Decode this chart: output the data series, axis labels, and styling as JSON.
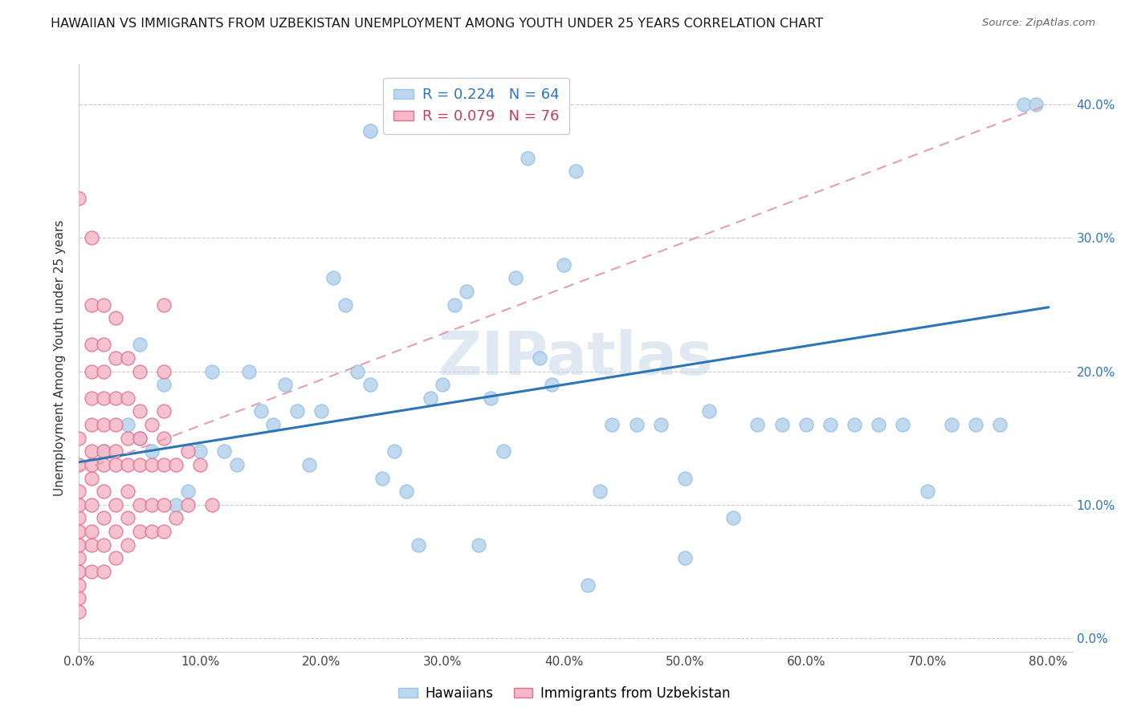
{
  "title": "HAWAIIAN VS IMMIGRANTS FROM UZBEKISTAN UNEMPLOYMENT AMONG YOUTH UNDER 25 YEARS CORRELATION CHART",
  "source": "Source: ZipAtlas.com",
  "ylabel": "Unemployment Among Youth under 25 years",
  "watermark": "ZIPatlas",
  "xlim": [
    0.0,
    0.82
  ],
  "ylim": [
    -0.01,
    0.43
  ],
  "xticks": [
    0.0,
    0.1,
    0.2,
    0.3,
    0.4,
    0.5,
    0.6,
    0.7,
    0.8
  ],
  "yticks": [
    0.0,
    0.1,
    0.2,
    0.3,
    0.4
  ],
  "hawaiians_color": "#bdd7ee",
  "hawaiians_edge": "#9dc3e6",
  "uzbekistan_color": "#f4b8c8",
  "uzbekistan_edge": "#e07090",
  "trendline_blue_color": "#2e75b6",
  "trendline_pink_color": "#e0a0b0",
  "trendline_h_x0": 0.0,
  "trendline_h_y0": 0.132,
  "trendline_h_x1": 0.8,
  "trendline_h_y1": 0.248,
  "trendline_u_x0": 0.0,
  "trendline_u_y0": 0.125,
  "trendline_u_x1": 0.8,
  "trendline_u_y1": 0.4,
  "legend1_label": "R = 0.224   N = 64",
  "legend2_label": "R = 0.079   N = 76",
  "bot_legend1": "Hawaiians",
  "bot_legend2": "Immigrants from Uzbekistan",
  "hawaiians_x": [
    0.02,
    0.04,
    0.05,
    0.05,
    0.06,
    0.07,
    0.08,
    0.09,
    0.1,
    0.11,
    0.12,
    0.13,
    0.14,
    0.15,
    0.16,
    0.17,
    0.18,
    0.19,
    0.2,
    0.21,
    0.22,
    0.23,
    0.24,
    0.25,
    0.26,
    0.27,
    0.28,
    0.29,
    0.3,
    0.31,
    0.32,
    0.33,
    0.34,
    0.35,
    0.36,
    0.37,
    0.38,
    0.39,
    0.4,
    0.41,
    0.42,
    0.43,
    0.44,
    0.46,
    0.48,
    0.5,
    0.52,
    0.54,
    0.56,
    0.58,
    0.6,
    0.62,
    0.64,
    0.66,
    0.68,
    0.7,
    0.72,
    0.74,
    0.76,
    0.78,
    0.24,
    0.24,
    0.5,
    0.79
  ],
  "hawaiians_y": [
    0.14,
    0.16,
    0.15,
    0.22,
    0.14,
    0.19,
    0.1,
    0.11,
    0.14,
    0.2,
    0.14,
    0.13,
    0.2,
    0.17,
    0.16,
    0.19,
    0.17,
    0.13,
    0.17,
    0.27,
    0.25,
    0.2,
    0.19,
    0.12,
    0.14,
    0.11,
    0.07,
    0.18,
    0.19,
    0.25,
    0.26,
    0.07,
    0.18,
    0.14,
    0.27,
    0.36,
    0.21,
    0.19,
    0.28,
    0.35,
    0.04,
    0.11,
    0.16,
    0.16,
    0.16,
    0.12,
    0.17,
    0.09,
    0.16,
    0.16,
    0.16,
    0.16,
    0.16,
    0.16,
    0.16,
    0.11,
    0.16,
    0.16,
    0.16,
    0.4,
    0.38,
    0.38,
    0.06,
    0.4
  ],
  "uzbekistan_x": [
    0.0,
    0.0,
    0.0,
    0.0,
    0.0,
    0.0,
    0.0,
    0.0,
    0.0,
    0.0,
    0.0,
    0.0,
    0.0,
    0.01,
    0.01,
    0.01,
    0.01,
    0.01,
    0.01,
    0.01,
    0.01,
    0.01,
    0.01,
    0.01,
    0.01,
    0.01,
    0.02,
    0.02,
    0.02,
    0.02,
    0.02,
    0.02,
    0.02,
    0.02,
    0.02,
    0.02,
    0.02,
    0.03,
    0.03,
    0.03,
    0.03,
    0.03,
    0.03,
    0.03,
    0.03,
    0.03,
    0.04,
    0.04,
    0.04,
    0.04,
    0.04,
    0.04,
    0.04,
    0.05,
    0.05,
    0.05,
    0.05,
    0.05,
    0.05,
    0.06,
    0.06,
    0.06,
    0.06,
    0.07,
    0.07,
    0.07,
    0.07,
    0.07,
    0.07,
    0.07,
    0.08,
    0.08,
    0.09,
    0.09,
    0.1,
    0.11
  ],
  "uzbekistan_y": [
    0.02,
    0.03,
    0.04,
    0.05,
    0.06,
    0.07,
    0.08,
    0.09,
    0.1,
    0.11,
    0.13,
    0.15,
    0.33,
    0.05,
    0.07,
    0.08,
    0.1,
    0.12,
    0.13,
    0.14,
    0.16,
    0.18,
    0.2,
    0.22,
    0.25,
    0.3,
    0.05,
    0.07,
    0.09,
    0.11,
    0.13,
    0.14,
    0.16,
    0.18,
    0.2,
    0.22,
    0.25,
    0.06,
    0.08,
    0.1,
    0.13,
    0.14,
    0.16,
    0.18,
    0.21,
    0.24,
    0.07,
    0.09,
    0.11,
    0.13,
    0.15,
    0.18,
    0.21,
    0.08,
    0.1,
    0.13,
    0.15,
    0.17,
    0.2,
    0.08,
    0.1,
    0.13,
    0.16,
    0.08,
    0.1,
    0.13,
    0.15,
    0.17,
    0.2,
    0.25,
    0.09,
    0.13,
    0.1,
    0.14,
    0.13,
    0.1
  ]
}
